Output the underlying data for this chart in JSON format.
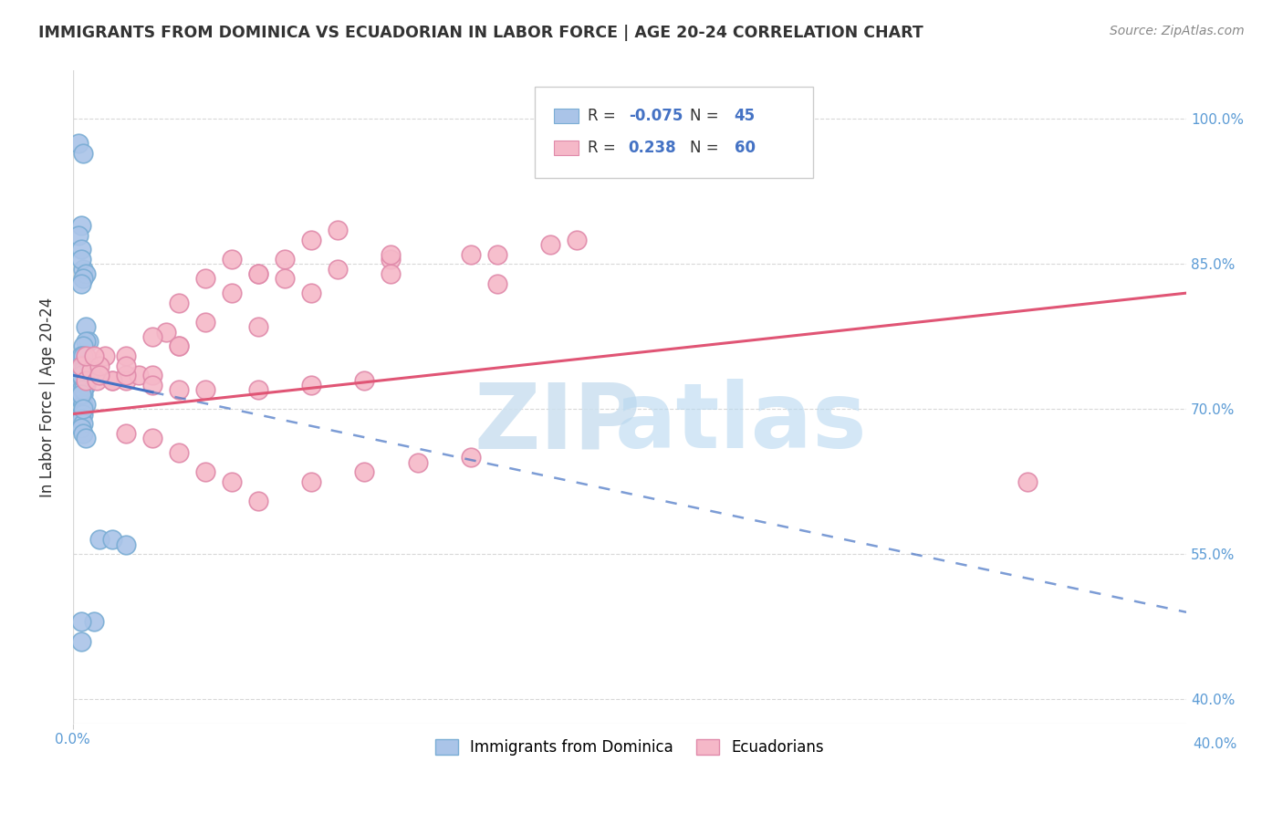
{
  "title": "IMMIGRANTS FROM DOMINICA VS ECUADORIAN IN LABOR FORCE | AGE 20-24 CORRELATION CHART",
  "source": "Source: ZipAtlas.com",
  "ylabel": "In Labor Force | Age 20-24",
  "xlim": [
    0.0,
    0.042
  ],
  "ylim": [
    0.375,
    1.05
  ],
  "yticks": [
    0.4,
    0.55,
    0.7,
    0.85,
    1.0
  ],
  "ytick_labels": [
    "40.0%",
    "55.0%",
    "70.0%",
    "85.0%",
    "100.0%"
  ],
  "legend_R1": "-0.075",
  "legend_N1": "45",
  "legend_R2": "0.238",
  "legend_N2": "60",
  "blue_color": "#aac4e8",
  "blue_edge": "#7aadd4",
  "pink_color": "#f5b8c8",
  "pink_edge": "#e08aaa",
  "blue_line_color": "#4472c4",
  "pink_line_color": "#e05575",
  "blue_trend_x0": 0.0,
  "blue_trend_y0": 0.735,
  "blue_trend_x1": 0.042,
  "blue_trend_y1": 0.49,
  "pink_trend_x0": 0.0,
  "pink_trend_y0": 0.695,
  "pink_trend_x1": 0.042,
  "pink_trend_y1": 0.82,
  "blue_points_x": [
    0.0002,
    0.0004,
    0.0003,
    0.0002,
    0.0003,
    0.0004,
    0.0003,
    0.0005,
    0.0004,
    0.0003,
    0.0005,
    0.0006,
    0.0005,
    0.0004,
    0.0003,
    0.0004,
    0.0005,
    0.0004,
    0.0003,
    0.0002,
    0.0004,
    0.0005,
    0.0003,
    0.0004,
    0.0003,
    0.0004,
    0.0005,
    0.0003,
    0.0004,
    0.0003,
    0.0004,
    0.0003,
    0.0004,
    0.0005,
    0.001,
    0.0015,
    0.002,
    0.0008,
    0.0003,
    0.0003,
    0.0004,
    0.0003,
    0.0004,
    0.0003,
    0.0004
  ],
  "blue_points_y": [
    0.975,
    0.965,
    0.89,
    0.88,
    0.865,
    0.845,
    0.855,
    0.84,
    0.835,
    0.83,
    0.785,
    0.77,
    0.77,
    0.765,
    0.755,
    0.755,
    0.745,
    0.745,
    0.74,
    0.73,
    0.73,
    0.725,
    0.72,
    0.715,
    0.71,
    0.705,
    0.705,
    0.695,
    0.695,
    0.69,
    0.685,
    0.68,
    0.675,
    0.67,
    0.565,
    0.565,
    0.56,
    0.48,
    0.48,
    0.46,
    0.74,
    0.735,
    0.72,
    0.715,
    0.7
  ],
  "pink_points_x": [
    0.0003,
    0.0005,
    0.0007,
    0.0009,
    0.0012,
    0.0015,
    0.002,
    0.0025,
    0.003,
    0.0035,
    0.004,
    0.005,
    0.006,
    0.007,
    0.008,
    0.009,
    0.01,
    0.012,
    0.015,
    0.018,
    0.002,
    0.003,
    0.004,
    0.005,
    0.006,
    0.007,
    0.009,
    0.011,
    0.013,
    0.015,
    0.0005,
    0.001,
    0.0015,
    0.002,
    0.003,
    0.004,
    0.005,
    0.007,
    0.009,
    0.011,
    0.0008,
    0.002,
    0.004,
    0.007,
    0.009,
    0.012,
    0.016,
    0.036,
    0.001,
    0.002,
    0.003,
    0.005,
    0.007,
    0.004,
    0.006,
    0.008,
    0.01,
    0.012,
    0.016,
    0.019
  ],
  "pink_points_y": [
    0.745,
    0.73,
    0.74,
    0.73,
    0.755,
    0.73,
    0.73,
    0.735,
    0.735,
    0.78,
    0.81,
    0.835,
    0.855,
    0.84,
    0.855,
    0.875,
    0.885,
    0.855,
    0.86,
    0.87,
    0.675,
    0.67,
    0.655,
    0.635,
    0.625,
    0.605,
    0.625,
    0.635,
    0.645,
    0.65,
    0.755,
    0.745,
    0.73,
    0.735,
    0.725,
    0.72,
    0.72,
    0.72,
    0.725,
    0.73,
    0.755,
    0.755,
    0.765,
    0.785,
    0.82,
    0.84,
    0.83,
    0.625,
    0.735,
    0.745,
    0.775,
    0.79,
    0.84,
    0.765,
    0.82,
    0.835,
    0.845,
    0.86,
    0.86,
    0.875
  ],
  "watermark_zip_color": "#cce0f0",
  "watermark_atlas_color": "#b8d8f0",
  "grid_color": "#d8d8d8",
  "axis_label_color": "#5b9bd5",
  "title_color": "#333333",
  "source_color": "#888888"
}
